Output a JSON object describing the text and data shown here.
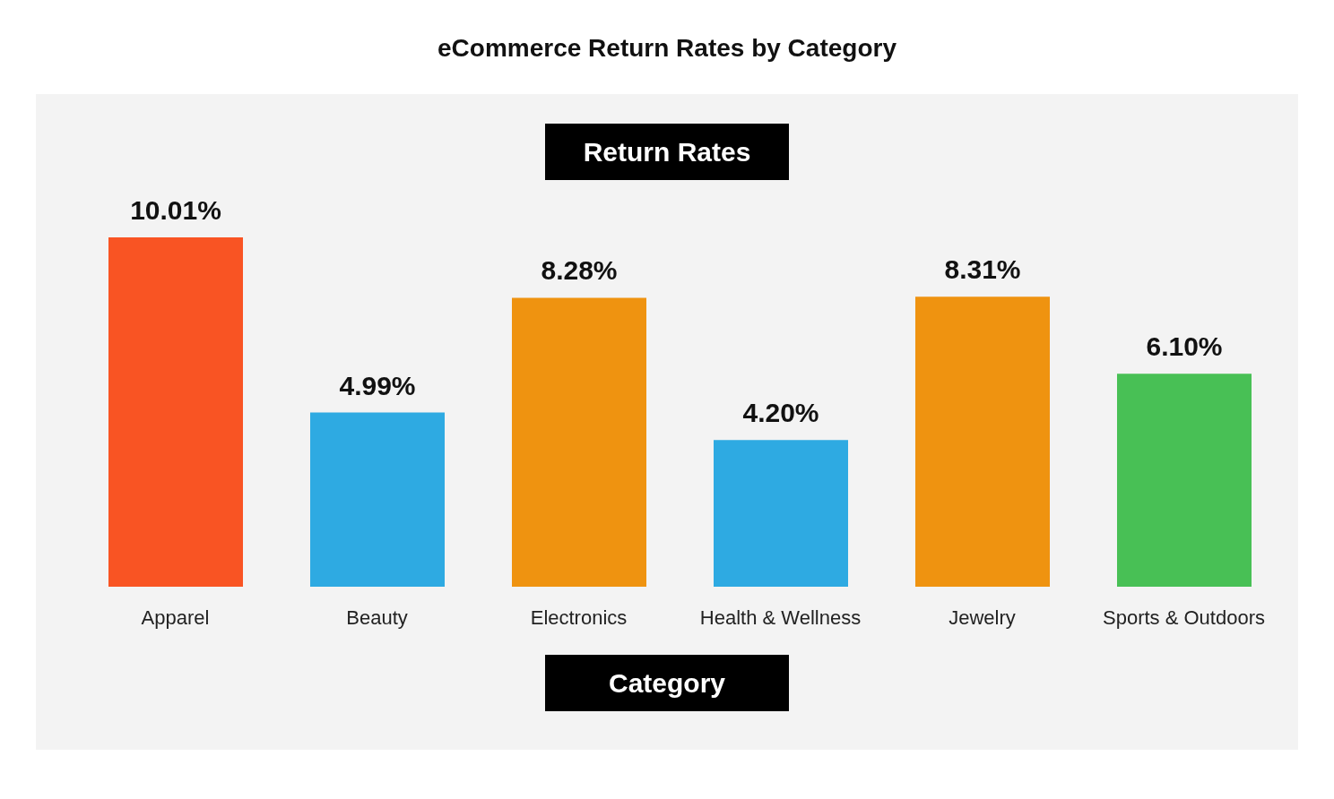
{
  "chart_data": {
    "type": "bar",
    "title": "eCommerce Return Rates by Category",
    "xlabel": "Category",
    "ylabel": "Return Rates",
    "categories": [
      "Apparel",
      "Beauty",
      "Electronics",
      "Health & Wellness",
      "Jewelry",
      "Sports & Outdoors"
    ],
    "values": [
      10.01,
      4.99,
      8.28,
      4.2,
      8.31,
      6.1
    ],
    "value_labels": [
      "10.01%",
      "4.99%",
      "8.28%",
      "4.20%",
      "8.31%",
      "6.10%"
    ],
    "colors": [
      "#f95423",
      "#2eaae2",
      "#ef9310",
      "#2eaae2",
      "#ef9310",
      "#48c055"
    ]
  }
}
